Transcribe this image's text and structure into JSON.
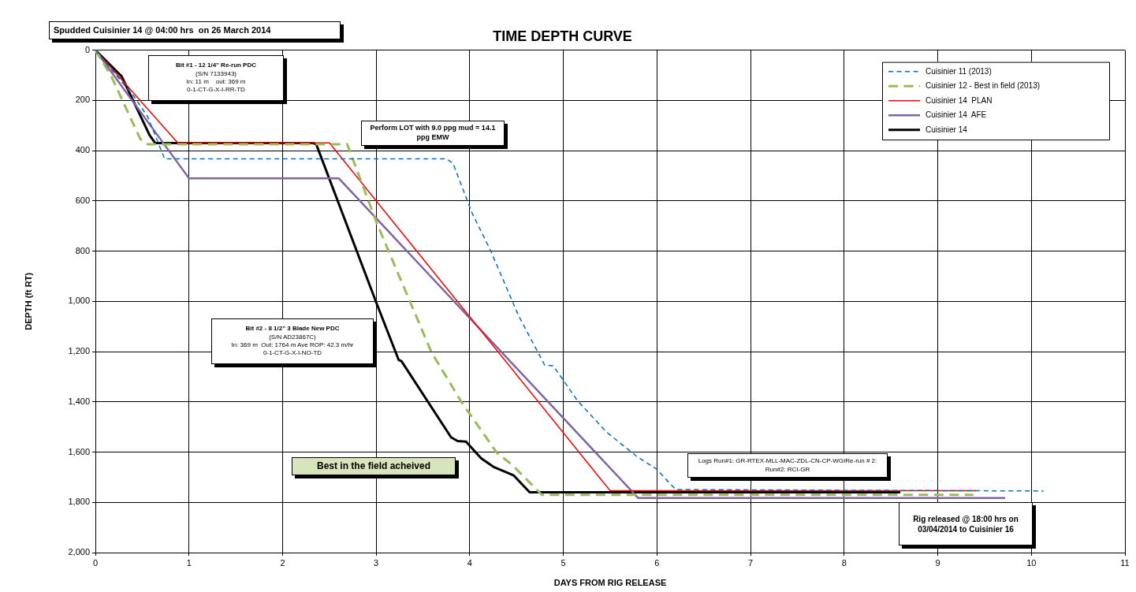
{
  "chart_data": {
    "type": "line",
    "title": "TIME DEPTH CURVE",
    "xlabel": "DAYS FROM RIG RELEASE",
    "ylabel": "DEPTH (ft RT)",
    "xlim": [
      0,
      11
    ],
    "xticks": [
      0,
      1,
      2,
      3,
      4,
      5,
      6,
      7,
      8,
      9,
      10,
      11
    ],
    "ylim": [
      2000,
      0
    ],
    "yticks": [
      0,
      200,
      400,
      600,
      800,
      {
        "value": 1000,
        "label": "1,000"
      },
      {
        "value": 1200,
        "label": "1,200"
      },
      {
        "value": 1400,
        "label": "1,400"
      },
      {
        "value": 1600,
        "label": "1,600"
      },
      {
        "value": 1800,
        "label": "1,800"
      },
      {
        "value": 2000,
        "label": "2,000"
      }
    ],
    "grid": true,
    "legend": "top right",
    "series": [
      {
        "name": "Cuisinier 11 (2013)",
        "color": "#0070c0",
        "line_style": "dashed",
        "x": [
          0,
          0.42,
          0.56,
          0.74,
          3.75,
          3.82,
          3.99,
          4.02,
          4.22,
          4.52,
          4.8,
          4.89,
          5.15,
          5.46,
          5.79,
          5.99,
          6.2,
          10.13
        ],
        "values": [
          0,
          188,
          266,
          433,
          433,
          450,
          615,
          645,
          796,
          1056,
          1254,
          1256,
          1395,
          1520,
          1619,
          1666,
          1749,
          1755
        ]
      },
      {
        "name": "Cuisinier 12 - Best in field (2013)",
        "color": "#9bbb59",
        "line_style": "dashed",
        "x": [
          0,
          0.17,
          0.48,
          0.56,
          2.64,
          2.69,
          3.01,
          3.59,
          3.91,
          4.29,
          4.45,
          4.77,
          9.38
        ],
        "values": [
          0,
          104,
          354,
          375,
          375,
          374,
          692,
          1202,
          1400,
          1603,
          1650,
          1770,
          1770
        ]
      },
      {
        "name": "Cuisinier 14  PLAN",
        "color": "#ff0000",
        "line_style": "solid",
        "x": [
          0,
          0.88,
          2.5,
          5.5,
          9.41
        ],
        "values": [
          0,
          369,
          369,
          1754,
          1754
        ]
      },
      {
        "name": "Cuisinier 14  AFE",
        "color": "#8064a2",
        "line_style": "solid",
        "x": [
          0,
          1.0,
          2.6,
          5.8,
          9.72
        ],
        "values": [
          0,
          510,
          510,
          1783,
          1783
        ]
      },
      {
        "name": "Cuisinier 14",
        "color": "#000000",
        "line_style": "solid",
        "x": [
          0,
          0.28,
          0.58,
          0.64,
          2.33,
          2.36,
          3.0,
          3.24,
          3.27,
          3.8,
          3.87,
          3.96,
          4.12,
          4.26,
          4.47,
          4.64,
          8.6
        ],
        "values": [
          0,
          104,
          339,
          370,
          370,
          375,
          1004,
          1233,
          1238,
          1541,
          1556,
          1558,
          1624,
          1660,
          1693,
          1760,
          1760
        ]
      }
    ],
    "annotations": [
      "Spudded Cuisinier 14 @ 04:00 hrs  on 26 March 2014",
      "Bit #1 - 12 1/4\" Re-run PDC\n(S/N 7133943)\nIn: 11 m    out: 369 m\n0-1-CT-G-X-I-RR-TD",
      "Perform LOT with 9.0 ppg mud = 14.1\nppg EMW",
      "Bit #2 - 8 1/2\" 3 Blade New PDC\n(S/N AD23867C)\nIn: 369 m  Out: 1764 m Ave ROP: 42.3 m/hr\n0-1-CT-G-X-I-NO-TD",
      "Best in the field acheived",
      "Logs Run#1: GR-RTEX-MLL-MAC-ZDL-CN-CP-WGIRe-run # 2:\nRun#2: RCI-GR",
      "Rig released @ 18:00 hrs on\n03/04/2014 to Cuisinier 16"
    ]
  }
}
